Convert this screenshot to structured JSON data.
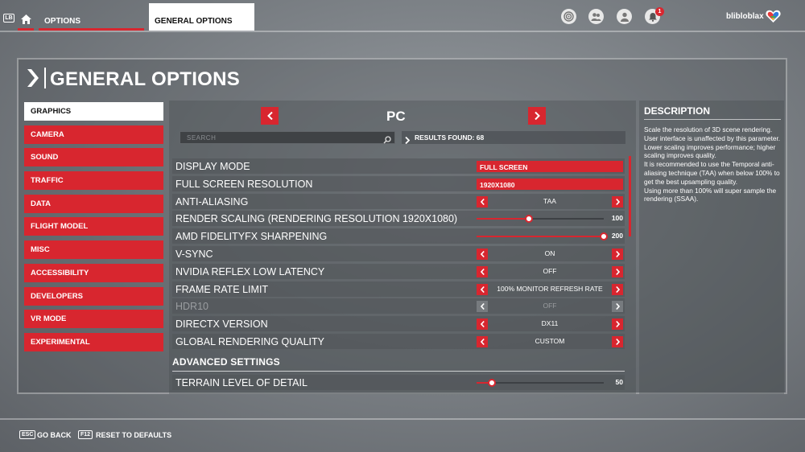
{
  "topbar": {
    "lb_key": "LB",
    "nav_options": "OPTIONS",
    "nav_general": "GENERAL OPTIONS",
    "notification_count": "1",
    "username": "blibloblax"
  },
  "panel": {
    "title": "GENERAL OPTIONS"
  },
  "categories": [
    {
      "label": "GRAPHICS",
      "active": true
    },
    {
      "label": "CAMERA"
    },
    {
      "label": "SOUND"
    },
    {
      "label": "TRAFFIC"
    },
    {
      "label": "DATA"
    },
    {
      "label": "FLIGHT MODEL"
    },
    {
      "label": "MISC"
    },
    {
      "label": "ACCESSIBILITY"
    },
    {
      "label": "DEVELOPERS"
    },
    {
      "label": "VR MODE"
    },
    {
      "label": "EXPERIMENTAL"
    }
  ],
  "platform": {
    "label": "PC"
  },
  "search": {
    "placeholder": "SEARCH"
  },
  "results": {
    "text": "RESULTS FOUND: 68"
  },
  "settings": [
    {
      "label": "DISPLAY MODE",
      "type": "dropdown",
      "value": "FULL SCREEN"
    },
    {
      "label": "FULL SCREEN RESOLUTION",
      "type": "dropdown",
      "value": "1920X1080"
    },
    {
      "label": "ANTI-ALIASING",
      "type": "selector",
      "value": "TAA"
    },
    {
      "label": "RENDER SCALING (RENDERING RESOLUTION 1920X1080)",
      "type": "slider",
      "value": "100",
      "fraction": 0.41
    },
    {
      "label": "AMD FIDELITYFX SHARPENING",
      "type": "slider",
      "value": "200",
      "fraction": 1.0
    },
    {
      "label": "V-SYNC",
      "type": "selector",
      "value": "ON"
    },
    {
      "label": "NVIDIA REFLEX LOW LATENCY",
      "type": "selector",
      "value": "OFF"
    },
    {
      "label": "FRAME RATE LIMIT",
      "type": "selector",
      "value": "100% MONITOR REFRESH RATE"
    },
    {
      "label": "HDR10",
      "type": "selector",
      "value": "OFF",
      "disabled": true
    },
    {
      "label": "DIRECTX VERSION",
      "type": "selector",
      "value": "DX11"
    },
    {
      "label": "GLOBAL RENDERING QUALITY",
      "type": "selector",
      "value": "CUSTOM"
    }
  ],
  "advanced": {
    "header": "ADVANCED SETTINGS",
    "settings": [
      {
        "label": "TERRAIN LEVEL OF DETAIL",
        "type": "slider",
        "value": "50",
        "fraction": 0.12
      }
    ]
  },
  "description": {
    "title": "DESCRIPTION",
    "lines": [
      "Scale the resolution of 3D scene rendering. User interface is unaffected by this parameter.",
      "Lower scaling improves performance; higher scaling improves quality.",
      "It is recommended to use the Temporal anti-aliasing technique (TAA) when below 100% to get the best upsampling quality.",
      "Using more than 100% will super sample the rendering (SSAA)."
    ]
  },
  "footer": {
    "back_key": "ESC",
    "back_label": "GO BACK",
    "reset_key": "F12",
    "reset_label": "RESET TO DEFAULTS"
  },
  "colors": {
    "accent": "#d8262f"
  }
}
